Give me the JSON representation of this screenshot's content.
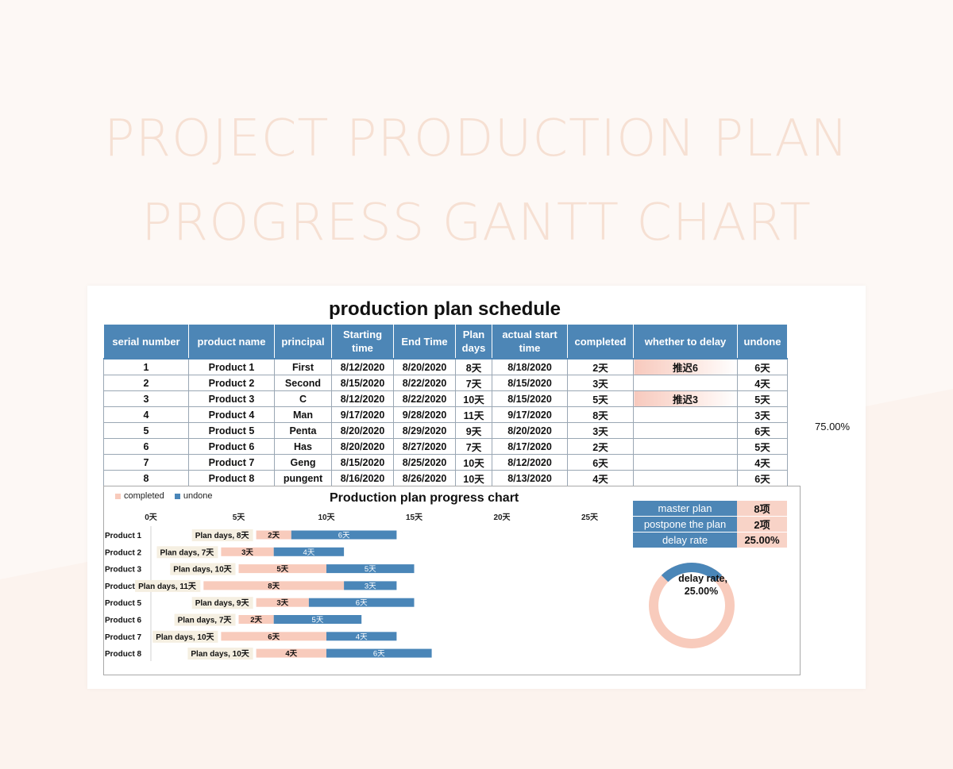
{
  "hero": {
    "line1": "PROJECT PRODUCTION PLAN",
    "line2": "PROGRESS GANTT CHART"
  },
  "schedule": {
    "title": "production plan schedule",
    "headers": [
      "serial number",
      "product name",
      "principal",
      "Starting time",
      "End Time",
      "Plan days",
      "actual start time",
      "completed",
      "whether to delay",
      "undone"
    ],
    "rows": [
      [
        "1",
        "Product 1",
        "First",
        "8/12/2020",
        "8/20/2020",
        "8天",
        "8/18/2020",
        "2天",
        "推迟6",
        "6天"
      ],
      [
        "2",
        "Product 2",
        "Second",
        "8/15/2020",
        "8/22/2020",
        "7天",
        "8/15/2020",
        "3天",
        "",
        "4天"
      ],
      [
        "3",
        "Product 3",
        "C",
        "8/12/2020",
        "8/22/2020",
        "10天",
        "8/15/2020",
        "5天",
        "推迟3",
        "5天"
      ],
      [
        "4",
        "Product 4",
        "Man",
        "9/17/2020",
        "9/28/2020",
        "11天",
        "9/17/2020",
        "8天",
        "",
        "3天"
      ],
      [
        "5",
        "Product 5",
        "Penta",
        "8/20/2020",
        "8/29/2020",
        "9天",
        "8/20/2020",
        "3天",
        "",
        "6天"
      ],
      [
        "6",
        "Product 6",
        "Has",
        "8/20/2020",
        "8/27/2020",
        "7天",
        "8/17/2020",
        "2天",
        "",
        "5天"
      ],
      [
        "7",
        "Product 7",
        "Geng",
        "8/15/2020",
        "8/25/2020",
        "10天",
        "8/12/2020",
        "6天",
        "",
        "4天"
      ],
      [
        "8",
        "Product 8",
        "pungent",
        "8/16/2020",
        "8/26/2020",
        "10天",
        "8/13/2020",
        "4天",
        "",
        "6天"
      ]
    ],
    "side_value": "75.00%"
  },
  "stats": {
    "rows": [
      {
        "label": "master plan",
        "value": "8项"
      },
      {
        "label": "postpone the plan",
        "value": "2项"
      },
      {
        "label": "delay rate",
        "value": "25.00%"
      }
    ]
  },
  "colors": {
    "completed": "#f8cbbc",
    "undone": "#4a86b8",
    "header": "#4d86b6",
    "plan_label_bg": "#f5efe1"
  },
  "chart_data": [
    {
      "type": "bar",
      "title": "Production plan progress chart",
      "orientation": "horizontal-stacked",
      "x_ticks": [
        "0天",
        "5天",
        "10天",
        "15天",
        "20天",
        "25天"
      ],
      "xlim": [
        0,
        25
      ],
      "legend_position": "top-left",
      "categories": [
        "Product 1",
        "Product 2",
        "Product 3",
        "Product 4",
        "Product 5",
        "Product 6",
        "Product 7",
        "Product 8"
      ],
      "plan_labels": [
        "Plan days, 8天",
        "Plan days, 7天",
        "Plan days, 10天",
        "Plan days, 11天",
        "Plan days, 9天",
        "Plan days, 7天",
        "Plan days, 10天",
        "Plan days, 10天"
      ],
      "offset_days": [
        8,
        7,
        10,
        11,
        9,
        7,
        10,
        10
      ],
      "series": [
        {
          "name": "completed",
          "values": [
            2,
            3,
            5,
            8,
            3,
            2,
            6,
            4
          ],
          "labels": [
            "2天",
            "3天",
            "5天",
            "8天",
            "3天",
            "2天",
            "6天",
            "4天"
          ]
        },
        {
          "name": "undone",
          "values": [
            6,
            4,
            5,
            3,
            6,
            5,
            4,
            6
          ],
          "labels": [
            "6天",
            "4天",
            "5天",
            "3天",
            "6天",
            "5天",
            "4天",
            "6天"
          ]
        }
      ]
    },
    {
      "type": "pie",
      "style": "donut",
      "label": "delay rate,",
      "value_label": "25.00%",
      "slices": [
        {
          "name": "delay rate",
          "value": 0.25
        },
        {
          "name": "rest",
          "value": 0.75
        }
      ]
    }
  ]
}
